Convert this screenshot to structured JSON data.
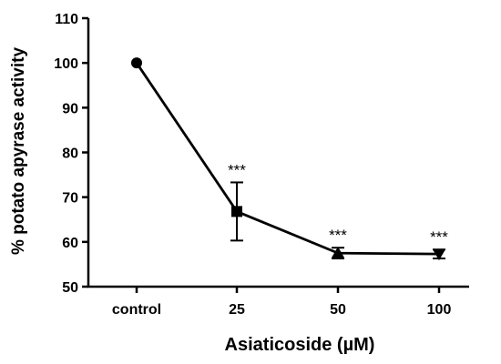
{
  "chart_data": {
    "type": "line",
    "xlabel": "Asiaticoside (µM)",
    "ylabel": "% potato apyrase activity",
    "categories": [
      "control",
      "25",
      "50",
      "100"
    ],
    "ylim": [
      50,
      110
    ],
    "yticks": [
      50,
      60,
      70,
      80,
      90,
      100,
      110
    ],
    "grid": false,
    "legend": "none",
    "series": [
      {
        "values": [
          100,
          66.8,
          57.5,
          57.3
        ],
        "errors": [
          0,
          6.5,
          1.2,
          1.0
        ],
        "markers": [
          "circle",
          "square",
          "triangle-up",
          "triangle-down"
        ],
        "color": "#000000"
      }
    ],
    "annotations": [
      "",
      "***",
      "***",
      "***"
    ]
  }
}
